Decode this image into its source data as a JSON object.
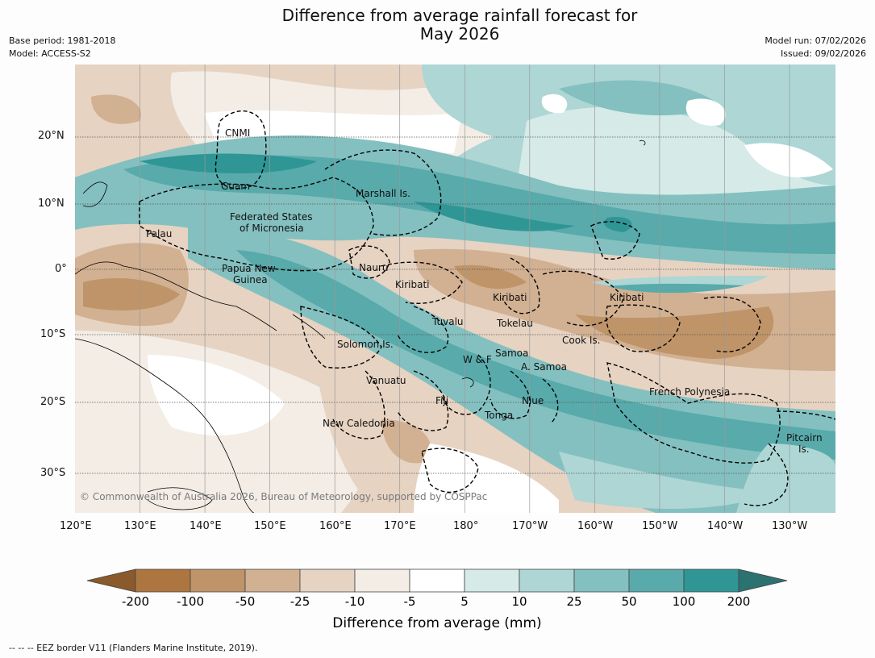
{
  "title_line1": "Difference from average rainfall forecast for",
  "title_line2": "May 2026",
  "meta": {
    "base_period": "Base period: 1981-2018",
    "model": "Model: ACCESS-S2",
    "model_run": "Model run: 07/02/2026",
    "issued": "Issued: 09/02/2026"
  },
  "copyright": "© Commonwealth of Australia 2026, Bureau of Meteorology, supported by COSPPac",
  "footer": "--  --  -- EEZ border V11 (Flanders Marine Institute, 2019).",
  "axes": {
    "lat_ticks": [
      "20°N",
      "10°N",
      "0°",
      "10°S",
      "20°S",
      "30°S"
    ],
    "lon_ticks": [
      "120°E",
      "130°E",
      "140°E",
      "150°E",
      "160°E",
      "170°E",
      "180°",
      "170°W",
      "160°W",
      "150°W",
      "140°W",
      "130°W"
    ]
  },
  "places": [
    {
      "label": "CNMI"
    },
    {
      "label": "Guam"
    },
    {
      "label": "Marshall Is."
    },
    {
      "label": "Federated States"
    },
    {
      "label": "of Micronesia"
    },
    {
      "label": "Palau"
    },
    {
      "label": "Papua New"
    },
    {
      "label": "Guinea"
    },
    {
      "label": "Nauru"
    },
    {
      "label": "Kiribati"
    },
    {
      "label": "Kiribati"
    },
    {
      "label": "Kiribati"
    },
    {
      "label": "Tuvalu"
    },
    {
      "label": "Tokelau"
    },
    {
      "label": "Cook Is."
    },
    {
      "label": "Solomon Is."
    },
    {
      "label": "W & F"
    },
    {
      "label": "Samoa"
    },
    {
      "label": "A. Samoa"
    },
    {
      "label": "Vanuatu"
    },
    {
      "label": "Fiji"
    },
    {
      "label": "Niue"
    },
    {
      "label": "Tonga"
    },
    {
      "label": "New Caledonia"
    },
    {
      "label": "French Polynesia"
    },
    {
      "label": "Pitcairn"
    },
    {
      "label": "Is."
    }
  ],
  "colorbar": {
    "label": "Difference from average (mm)",
    "ticks": [
      "-200",
      "-100",
      "-50",
      "-25",
      "-10",
      "-5",
      "5",
      "10",
      "25",
      "50",
      "100",
      "200"
    ],
    "colors": [
      "#8a5a2b",
      "#ad7540",
      "#bf9468",
      "#d2b092",
      "#e6d3c2",
      "#f3ede6",
      "#ffffff",
      "#d6eae8",
      "#add6d5",
      "#84c0c0",
      "#58aaab",
      "#2f9695",
      "#2b7270"
    ]
  }
}
